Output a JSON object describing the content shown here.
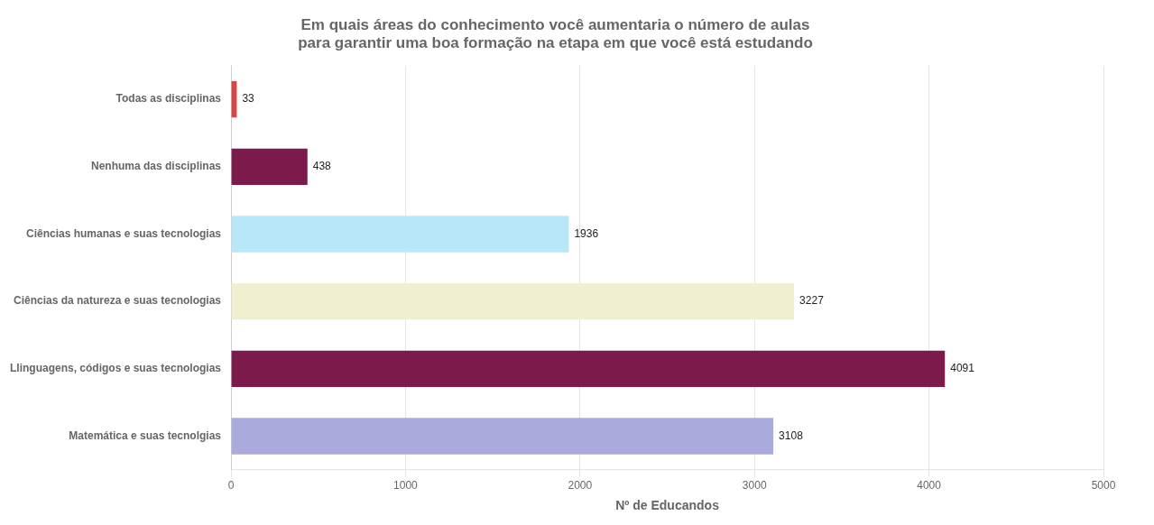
{
  "chart_data": {
    "type": "bar",
    "orientation": "horizontal",
    "title": "Em quais áreas do conhecimento você aumentaria o número de aulas\npara garantir uma boa formação na etapa em que você está estudando",
    "categories": [
      "Matemática e suas tecnolgias",
      "Llinguagens, códigos e suas tecnologias",
      "Ciências da natureza e suas tecnologias",
      "Ciências humanas e suas tecnologias",
      "Nenhuma das disciplinas",
      "Todas as disciplinas"
    ],
    "values": [
      3108,
      4091,
      3227,
      1936,
      438,
      33
    ],
    "colors": [
      "#aaaadd",
      "#7b1a4b",
      "#f0f0d0",
      "#b8e8f8",
      "#7b1a4b",
      "#dd4444"
    ],
    "xlabel": "Nº de Educandos",
    "xlim": [
      0,
      5000
    ],
    "xticks": [
      0,
      1000,
      2000,
      3000,
      4000,
      5000
    ],
    "grid": true,
    "data_labels": true
  }
}
